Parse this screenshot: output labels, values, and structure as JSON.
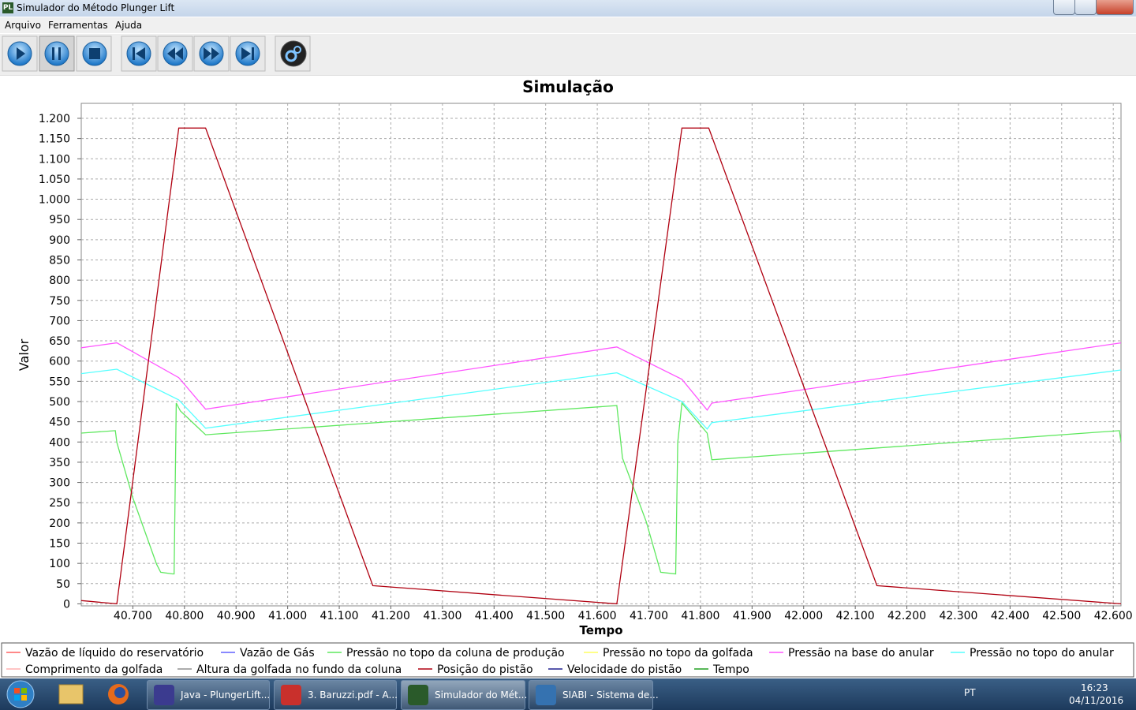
{
  "window": {
    "title": "Simulador do Método Plunger Lift"
  },
  "menu": [
    "Arquivo",
    "Ferramentas",
    "Ajuda"
  ],
  "chart_data": {
    "type": "line",
    "title": "Simulação",
    "x_label": "Tempo",
    "y_label": "Valor",
    "xlim": [
      40.6,
      42.615
    ],
    "ylim": [
      -5,
      1237
    ],
    "grid": true,
    "xticks": [
      {
        "value": 40.7,
        "label": "40.700"
      },
      {
        "value": 40.8,
        "label": "40.800"
      },
      {
        "value": 40.9,
        "label": "40.900"
      },
      {
        "value": 41.0,
        "label": "41.000"
      },
      {
        "value": 41.1,
        "label": "41.100"
      },
      {
        "value": 41.2,
        "label": "41.200"
      },
      {
        "value": 41.3,
        "label": "41.300"
      },
      {
        "value": 41.4,
        "label": "41.400"
      },
      {
        "value": 41.5,
        "label": "41.500"
      },
      {
        "value": 41.6,
        "label": "41.600"
      },
      {
        "value": 41.7,
        "label": "41.700"
      },
      {
        "value": 41.8,
        "label": "41.800"
      },
      {
        "value": 41.9,
        "label": "41.900"
      },
      {
        "value": 42.0,
        "label": "42.000"
      },
      {
        "value": 42.1,
        "label": "42.100"
      },
      {
        "value": 42.2,
        "label": "42.200"
      },
      {
        "value": 42.3,
        "label": "42.300"
      },
      {
        "value": 42.4,
        "label": "42.400"
      },
      {
        "value": 42.5,
        "label": "42.500"
      },
      {
        "value": 42.6,
        "label": "42.600"
      }
    ],
    "yticks": [
      0,
      50,
      100,
      150,
      200,
      250,
      300,
      350,
      400,
      450,
      500,
      550,
      600,
      650,
      700,
      750,
      800,
      850,
      900,
      950,
      {
        "value": 1000,
        "label": "1.000"
      },
      {
        "value": 1050,
        "label": "1.050"
      },
      {
        "value": 1100,
        "label": "1.100"
      },
      {
        "value": 1150,
        "label": "1.150"
      },
      {
        "value": 1200,
        "label": "1.200"
      }
    ],
    "series": [
      {
        "name": "Vazão de líquido do reservatório",
        "color": "#ff6060"
      },
      {
        "name": "Vazão de Gás",
        "color": "#6060ff"
      },
      {
        "name": "Pressão no topo da coluna de produção",
        "color": "#5fe85f",
        "x": [
          40.6,
          40.666,
          40.669,
          40.7,
          40.746,
          40.754,
          40.777,
          40.78,
          40.784,
          40.792,
          40.841,
          41.638,
          41.649,
          41.695,
          41.723,
          41.752,
          41.756,
          41.764,
          41.813,
          41.822,
          42.612,
          42.615
        ],
        "values": [
          422,
          428,
          399,
          262,
          98,
          78,
          74,
          74,
          496,
          477,
          418,
          490,
          360,
          203,
          78,
          74,
          399,
          496,
          422,
          356,
          428,
          399
        ]
      },
      {
        "name": "Pressão no topo da golfada",
        "color": "#ffff60"
      },
      {
        "name": "Pressão na base do anular",
        "color": "#ff55ff",
        "x": [
          40.6,
          40.669,
          40.789,
          40.841,
          41.638,
          41.764,
          41.813,
          41.822,
          42.615
        ],
        "values": [
          633,
          645,
          559,
          481,
          635,
          555,
          479,
          496,
          645
        ]
      },
      {
        "name": "Pressão no topo do anular",
        "color": "#55ffff",
        "x": [
          40.6,
          40.669,
          40.789,
          40.841,
          41.638,
          41.764,
          41.813,
          41.822,
          42.615
        ],
        "values": [
          569,
          580,
          504,
          434,
          571,
          500,
          432,
          448,
          578
        ]
      },
      {
        "name": "Comprimento da golfada",
        "color": "#ffb0b0"
      },
      {
        "name": "Altura da golfada no fundo da coluna",
        "color": "#909090"
      },
      {
        "name": "Posição do pistão",
        "color": "#b00010",
        "x": [
          40.6,
          40.669,
          40.789,
          40.841,
          41.165,
          41.638,
          41.764,
          41.816,
          42.142,
          42.615
        ],
        "values": [
          8,
          0,
          1176,
          1176,
          45,
          0,
          1176,
          1176,
          45,
          0
        ]
      },
      {
        "name": "Velocidade do pistão",
        "color": "#202090"
      },
      {
        "name": "Tempo",
        "color": "#20a020"
      }
    ]
  },
  "taskbar": {
    "items": [
      "Java - PlungerLift...",
      "3. Baruzzi.pdf - A...",
      "Simulador do Mét...",
      "SIABI - Sistema de..."
    ],
    "language": "PT",
    "time": "16:23",
    "date": "04/11/2016"
  }
}
